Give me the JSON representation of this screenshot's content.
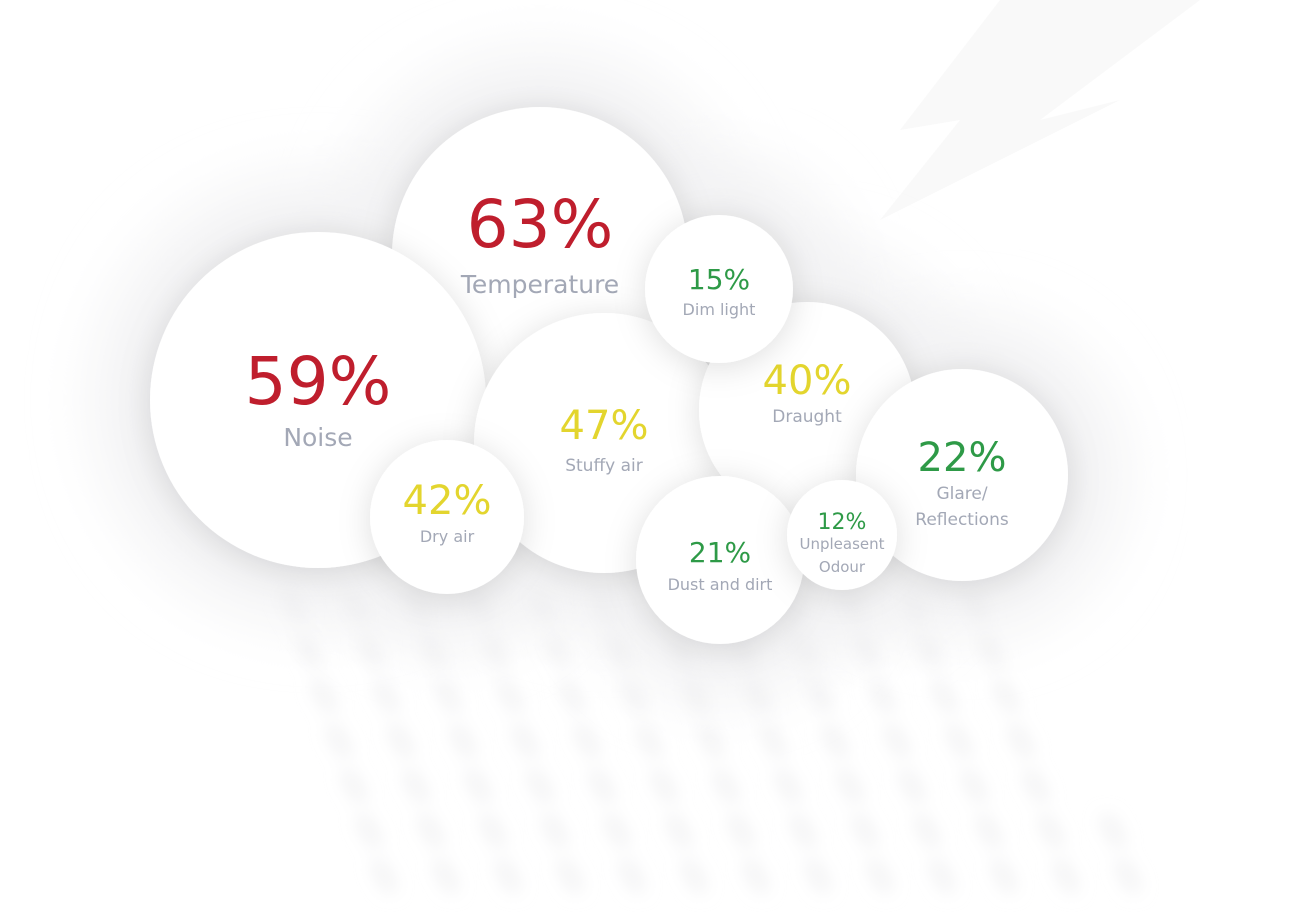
{
  "colors": {
    "high": "#bf1e2d",
    "medium": "#e3d52e",
    "low": "#2e9a47",
    "label": "#a3a8b6"
  },
  "chart_data": {
    "type": "bubble",
    "title": "",
    "items": [
      {
        "value": 63,
        "display": "63%",
        "label_lines": [
          "Temperature"
        ],
        "level": "high"
      },
      {
        "value": 59,
        "display": "59%",
        "label_lines": [
          "Noise"
        ],
        "level": "high"
      },
      {
        "value": 47,
        "display": "47%",
        "label_lines": [
          "Stuffy air"
        ],
        "level": "medium"
      },
      {
        "value": 42,
        "display": "42%",
        "label_lines": [
          "Dry air"
        ],
        "level": "medium"
      },
      {
        "value": 40,
        "display": "40%",
        "label_lines": [
          "Draught"
        ],
        "level": "medium"
      },
      {
        "value": 22,
        "display": "22%",
        "label_lines": [
          "Glare/",
          "Reflections"
        ],
        "level": "low"
      },
      {
        "value": 21,
        "display": "21%",
        "label_lines": [
          "Dust and dirt"
        ],
        "level": "low"
      },
      {
        "value": 15,
        "display": "15%",
        "label_lines": [
          "Dim light"
        ],
        "level": "low"
      },
      {
        "value": 12,
        "display": "12%",
        "label_lines": [
          "Unpleasent",
          "Odour"
        ],
        "level": "low"
      }
    ]
  }
}
